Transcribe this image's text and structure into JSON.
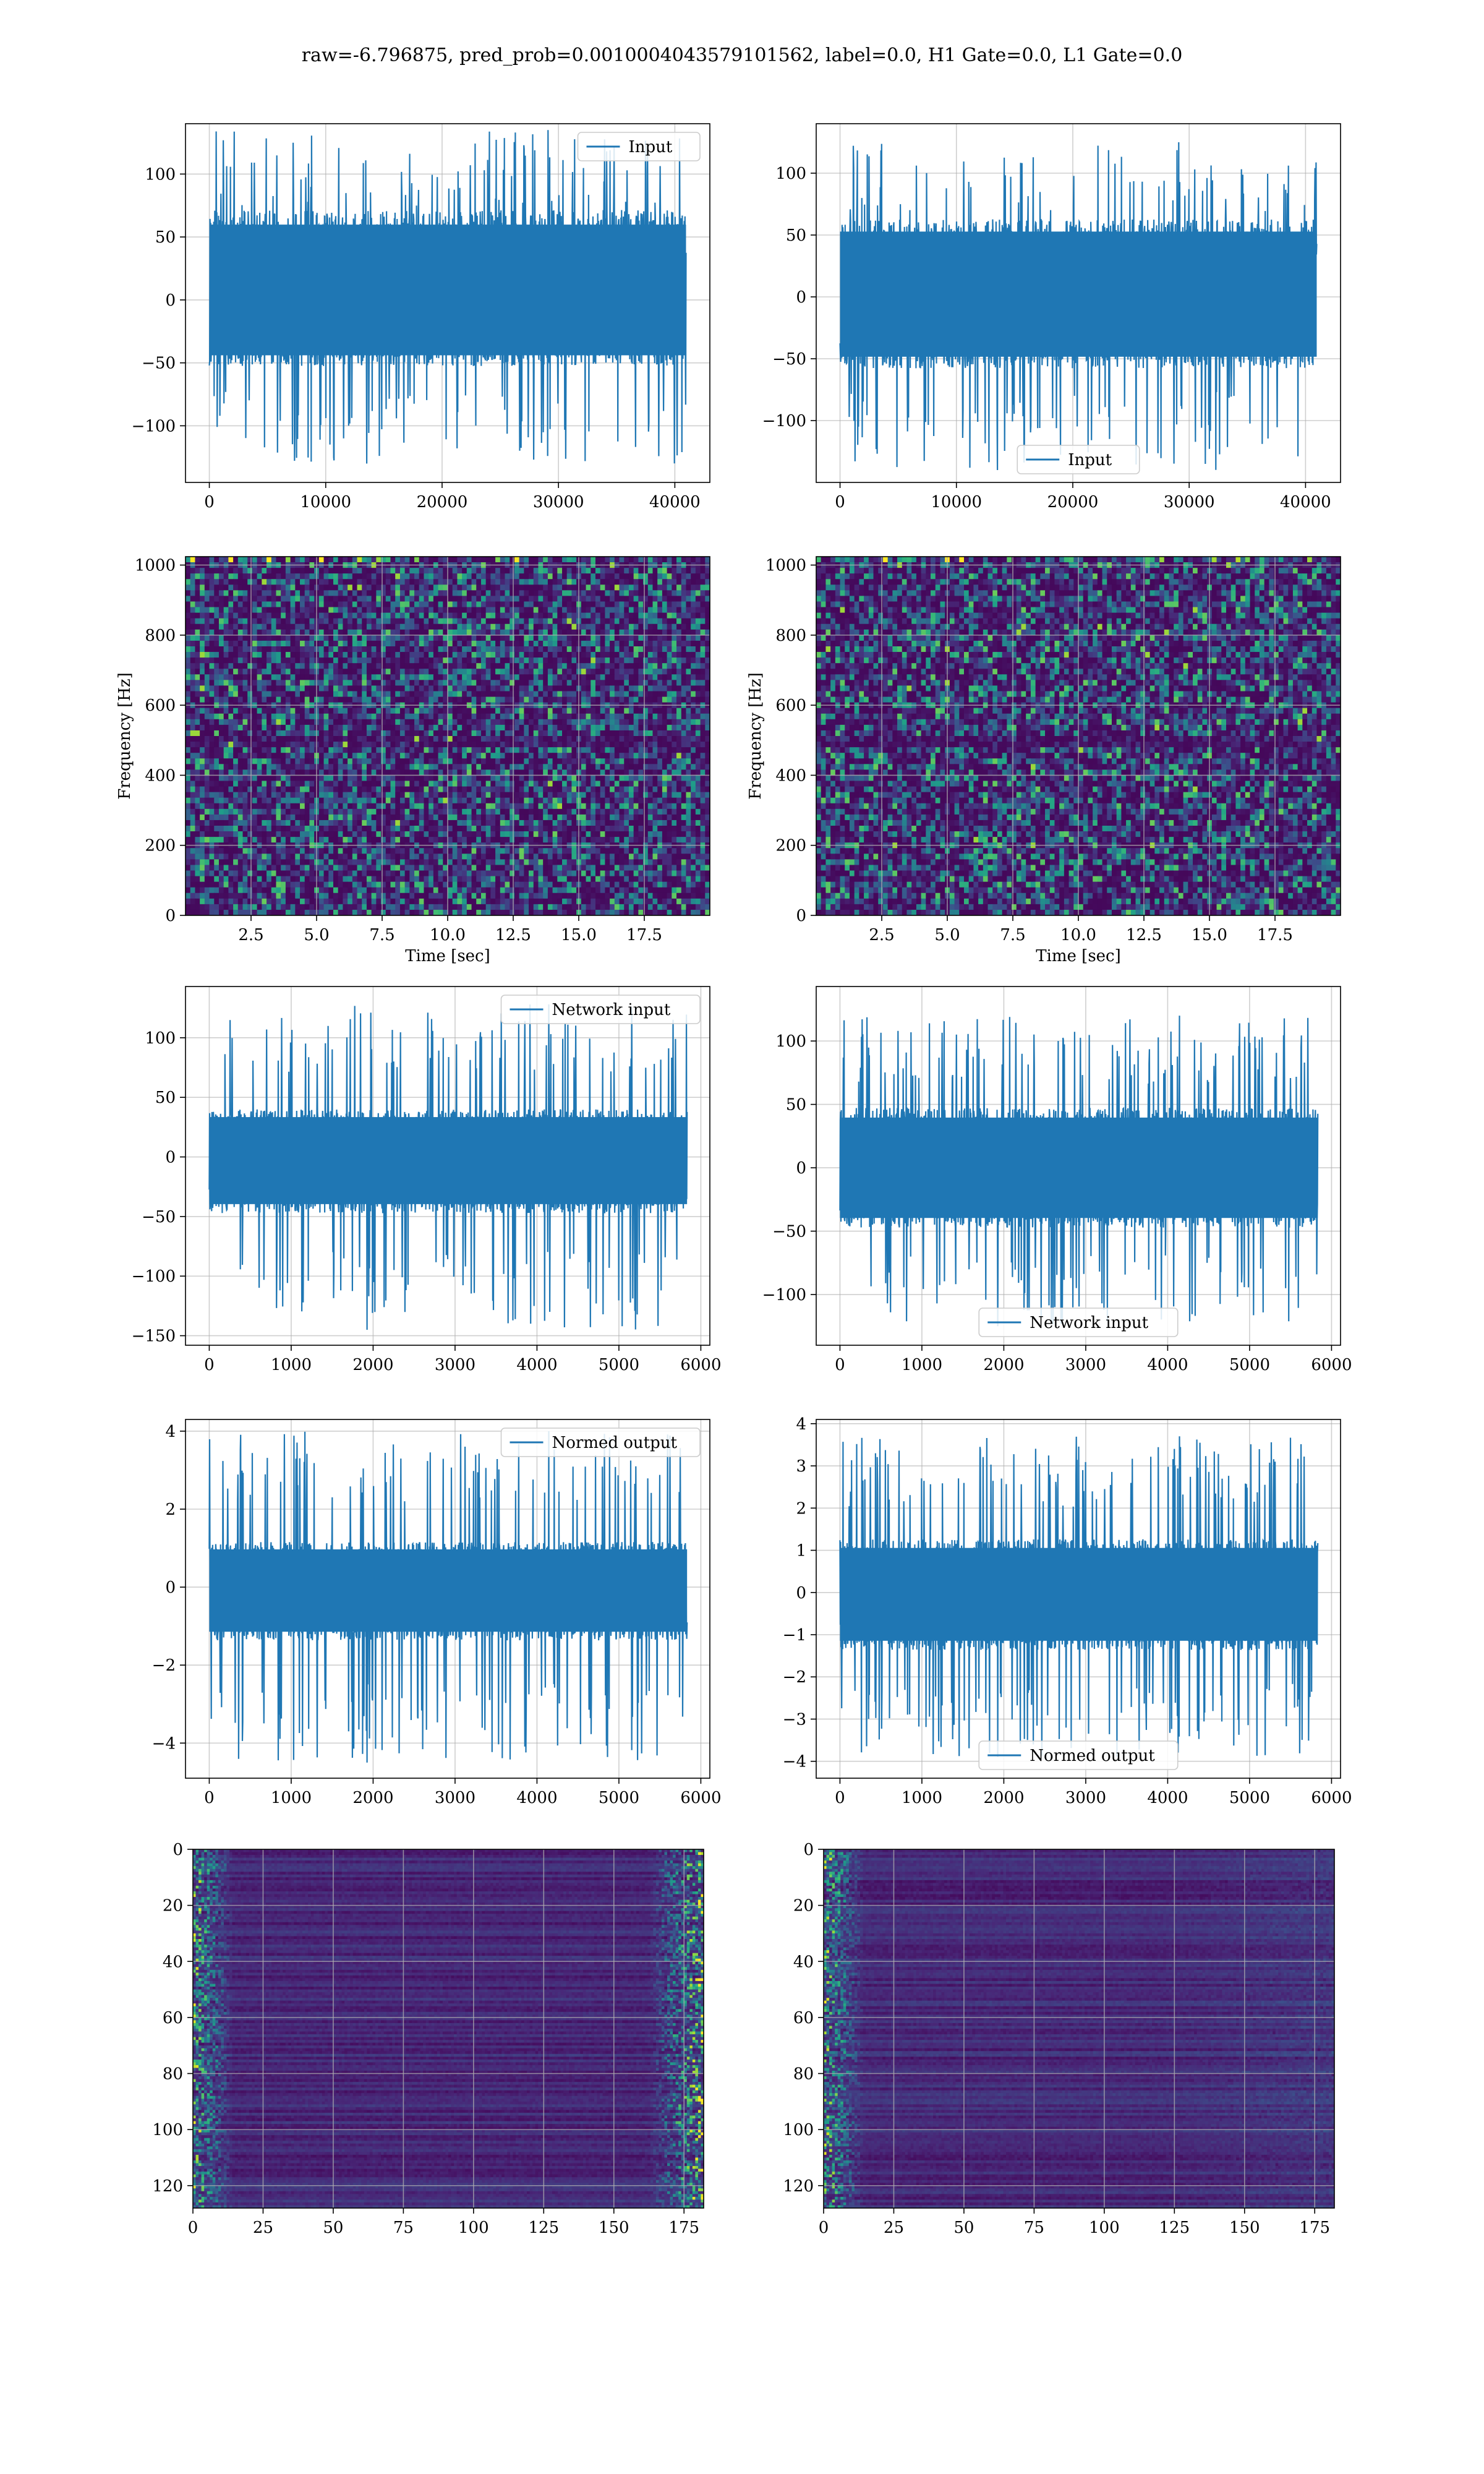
{
  "figure_title": "raw=-6.796875, pred_prob=0.0010004043579101562, label=0.0, H1 Gate=0.0, L1 Gate=0.0",
  "colors": {
    "line": "#1f77b4",
    "grid": "#b0b0b0",
    "viridis_low": "#440154",
    "viridis_mid": "#21918c",
    "viridis_high": "#fde725"
  },
  "chart_data": [
    {
      "id": "h1-input",
      "type": "line",
      "title": "",
      "xlabel": "",
      "ylabel": "",
      "xlim": [
        -2048,
        43008
      ],
      "ylim": [
        -145,
        140
      ],
      "xticks": [
        0,
        10000,
        20000,
        30000,
        40000
      ],
      "yticks": [
        -100,
        -50,
        0,
        50,
        100
      ],
      "legend": "top-right",
      "grid": true,
      "series": [
        {
          "name": "Input",
          "x_start": 0,
          "x_end": 40960,
          "band": [
            -50,
            68
          ],
          "peaks": [
            -130,
            135
          ]
        }
      ]
    },
    {
      "id": "l1-input",
      "type": "line",
      "title": "",
      "xlabel": "",
      "ylabel": "",
      "xlim": [
        -2048,
        43008
      ],
      "ylim": [
        -150,
        140
      ],
      "xticks": [
        0,
        10000,
        20000,
        30000,
        40000
      ],
      "yticks": [
        -100,
        -50,
        0,
        50,
        100
      ],
      "legend": "bottom-center",
      "grid": true,
      "series": [
        {
          "name": "Input",
          "x_start": 0,
          "x_end": 40960,
          "band": [
            -55,
            60
          ],
          "peaks": [
            -140,
            125
          ]
        }
      ]
    },
    {
      "id": "h1-spectrogram",
      "type": "heatmap",
      "title": "",
      "xlabel": "Time [sec]",
      "ylabel": "Frequency [Hz]",
      "xlim": [
        0,
        20
      ],
      "ylim": [
        0,
        1024
      ],
      "xticks": [
        2.5,
        5.0,
        7.5,
        10.0,
        12.5,
        15.0,
        17.5
      ],
      "yticks": [
        0,
        200,
        400,
        600,
        800,
        1000
      ],
      "grid": true,
      "colormap": "viridis"
    },
    {
      "id": "l1-spectrogram",
      "type": "heatmap",
      "title": "",
      "xlabel": "Time [sec]",
      "ylabel": "Frequency [Hz]",
      "xlim": [
        0,
        20
      ],
      "ylim": [
        0,
        1024
      ],
      "xticks": [
        2.5,
        5.0,
        7.5,
        10.0,
        12.5,
        15.0,
        17.5
      ],
      "yticks": [
        0,
        200,
        400,
        600,
        800,
        1000
      ],
      "grid": true,
      "colormap": "viridis"
    },
    {
      "id": "h1-network-input",
      "type": "line",
      "title": "",
      "xlabel": "",
      "ylabel": "",
      "xlim": [
        -290,
        6110
      ],
      "ylim": [
        -158,
        143
      ],
      "xticks": [
        0,
        1000,
        2000,
        3000,
        4000,
        5000,
        6000
      ],
      "yticks": [
        -150,
        -100,
        -50,
        0,
        50,
        100
      ],
      "legend": "top-right",
      "grid": true,
      "series": [
        {
          "name": "Network input",
          "x_start": 0,
          "x_end": 5832,
          "band": [
            -45,
            38
          ],
          "peaks": [
            -145,
            128
          ]
        }
      ]
    },
    {
      "id": "l1-network-input",
      "type": "line",
      "title": "",
      "xlabel": "",
      "ylabel": "",
      "xlim": [
        -290,
        6110
      ],
      "ylim": [
        -140,
        143
      ],
      "xticks": [
        0,
        1000,
        2000,
        3000,
        4000,
        5000,
        6000
      ],
      "yticks": [
        -100,
        -50,
        0,
        50,
        100
      ],
      "legend": "bottom-center",
      "grid": true,
      "series": [
        {
          "name": "Network input",
          "x_start": 0,
          "x_end": 5832,
          "band": [
            -45,
            45
          ],
          "peaks": [
            -125,
            120
          ]
        }
      ]
    },
    {
      "id": "h1-normed-output",
      "type": "line",
      "title": "",
      "xlabel": "",
      "ylabel": "",
      "xlim": [
        -290,
        6110
      ],
      "ylim": [
        -4.9,
        4.3
      ],
      "xticks": [
        0,
        1000,
        2000,
        3000,
        4000,
        5000,
        6000
      ],
      "yticks": [
        -4,
        -2,
        0,
        2,
        4
      ],
      "legend": "top-right",
      "grid": true,
      "series": [
        {
          "name": "Normed output",
          "x_start": 0,
          "x_end": 5832,
          "band": [
            -1.3,
            1.1
          ],
          "peaks": [
            -4.5,
            4.0
          ]
        }
      ]
    },
    {
      "id": "l1-normed-output",
      "type": "line",
      "title": "",
      "xlabel": "",
      "ylabel": "",
      "xlim": [
        -290,
        6110
      ],
      "ylim": [
        -4.4,
        4.1
      ],
      "xticks": [
        0,
        1000,
        2000,
        3000,
        4000,
        5000,
        6000
      ],
      "yticks": [
        -4,
        -3,
        -2,
        -1,
        0,
        1,
        2,
        3,
        4
      ],
      "legend": "bottom-center",
      "grid": true,
      "series": [
        {
          "name": "Normed output",
          "x_start": 0,
          "x_end": 5832,
          "band": [
            -1.3,
            1.2
          ],
          "peaks": [
            -3.9,
            3.7
          ]
        }
      ]
    },
    {
      "id": "h1-feature-map",
      "type": "heatmap",
      "title": "",
      "xlabel": "",
      "ylabel": "",
      "xlim": [
        0,
        182
      ],
      "ylim": [
        128,
        0
      ],
      "xticks": [
        0,
        25,
        50,
        75,
        100,
        125,
        150,
        175
      ],
      "yticks": [
        0,
        20,
        40,
        60,
        80,
        100,
        120
      ],
      "grid": true,
      "colormap": "viridis",
      "bright_edges": "left-and-right"
    },
    {
      "id": "l1-feature-map",
      "type": "heatmap",
      "title": "",
      "xlabel": "",
      "ylabel": "",
      "xlim": [
        0,
        182
      ],
      "ylim": [
        128,
        0
      ],
      "xticks": [
        0,
        25,
        50,
        75,
        100,
        125,
        150,
        175
      ],
      "yticks": [
        0,
        20,
        40,
        60,
        80,
        100,
        120
      ],
      "grid": true,
      "colormap": "viridis",
      "bright_edges": "left"
    }
  ]
}
